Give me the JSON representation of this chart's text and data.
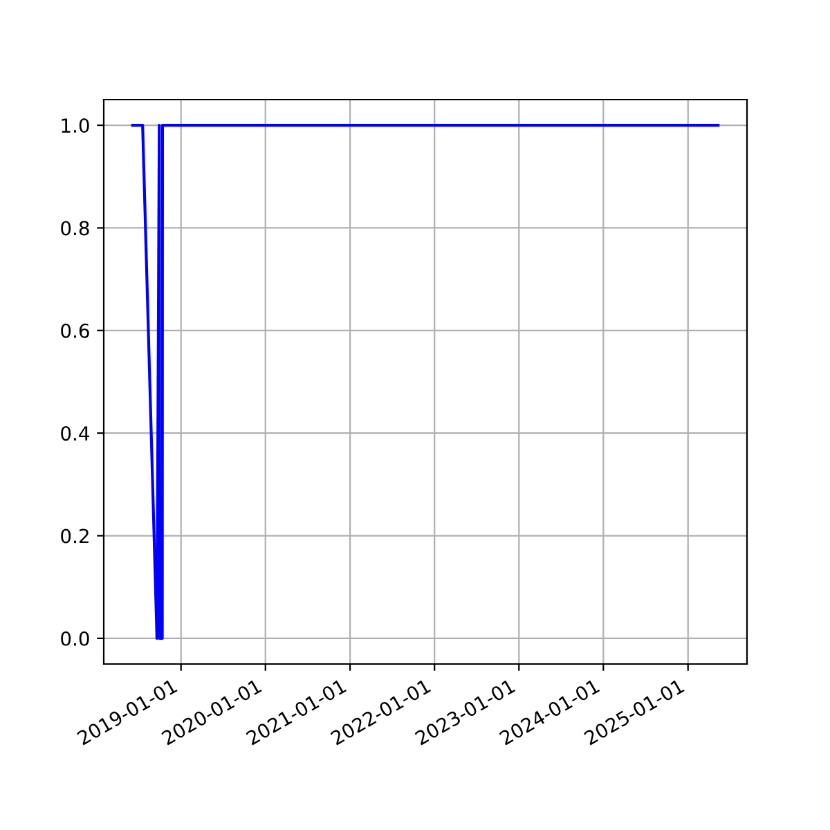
{
  "chart_data": {
    "type": "line",
    "x": [
      "2018-06-06",
      "2018-07-19",
      "2018-09-19",
      "2018-09-29",
      "2018-09-30",
      "2018-10-12",
      "2018-10-13",
      "2025-05-11"
    ],
    "series": [
      {
        "color": "#0000ff",
        "values": [
          1,
          1,
          0,
          1,
          0,
          0,
          1,
          1
        ]
      }
    ],
    "xlim": [
      "2018-02-01",
      "2025-09-13"
    ],
    "xticks": [
      "2019-01-01",
      "2020-01-01",
      "2021-01-01",
      "2022-01-01",
      "2023-01-01",
      "2024-01-01",
      "2025-01-01"
    ],
    "ylim": [
      -0.05,
      1.05
    ],
    "yticks": [
      {
        "value": 0,
        "label": "0.0"
      },
      {
        "value": 0.2,
        "label": "0.2"
      },
      {
        "value": 0.4,
        "label": "0.4"
      },
      {
        "value": 0.6,
        "label": "0.6"
      },
      {
        "value": 0.8,
        "label": "0.8"
      },
      {
        "value": 1,
        "label": "1.0"
      }
    ],
    "grid": true
  }
}
